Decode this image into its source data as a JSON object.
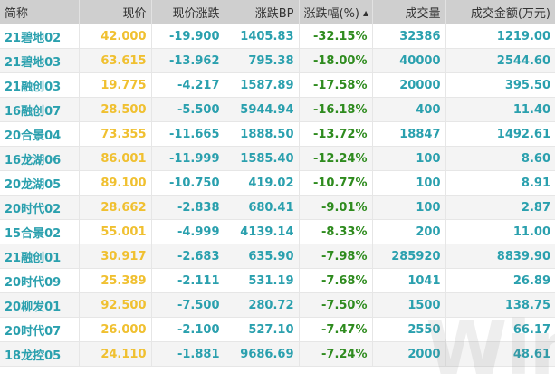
{
  "table": {
    "headers": {
      "name": "简称",
      "price": "现价",
      "change": "现价涨跌",
      "change_bp": "涨跌BP",
      "change_pct": "涨跌幅(%)",
      "volume": "成交量",
      "amount": "成交金额(万元)"
    },
    "sort": {
      "column": "change_pct",
      "direction": "ascending",
      "icon": "sort-up-triangle"
    },
    "rows": [
      {
        "name": "21碧地02",
        "price": "42.000",
        "change": "-19.900",
        "change_bp": "1405.83",
        "change_pct": "-32.15%",
        "volume": "32386",
        "amount": "1219.00"
      },
      {
        "name": "21碧地03",
        "price": "63.615",
        "change": "-13.962",
        "change_bp": "795.38",
        "change_pct": "-18.00%",
        "volume": "40000",
        "amount": "2544.60"
      },
      {
        "name": "21融创03",
        "price": "19.775",
        "change": "-4.217",
        "change_bp": "1587.89",
        "change_pct": "-17.58%",
        "volume": "20000",
        "amount": "395.50"
      },
      {
        "name": "16融创07",
        "price": "28.500",
        "change": "-5.500",
        "change_bp": "5944.94",
        "change_pct": "-16.18%",
        "volume": "400",
        "amount": "11.40"
      },
      {
        "name": "20合景04",
        "price": "73.355",
        "change": "-11.665",
        "change_bp": "1888.50",
        "change_pct": "-13.72%",
        "volume": "18847",
        "amount": "1492.61"
      },
      {
        "name": "16龙湖06",
        "price": "86.001",
        "change": "-11.999",
        "change_bp": "1585.40",
        "change_pct": "-12.24%",
        "volume": "100",
        "amount": "8.60"
      },
      {
        "name": "20龙湖05",
        "price": "89.100",
        "change": "-10.750",
        "change_bp": "419.02",
        "change_pct": "-10.77%",
        "volume": "100",
        "amount": "8.91"
      },
      {
        "name": "20时代02",
        "price": "28.662",
        "change": "-2.838",
        "change_bp": "680.41",
        "change_pct": "-9.01%",
        "volume": "100",
        "amount": "2.87"
      },
      {
        "name": "15合景02",
        "price": "55.001",
        "change": "-4.999",
        "change_bp": "4139.14",
        "change_pct": "-8.33%",
        "volume": "200",
        "amount": "11.00"
      },
      {
        "name": "21融创01",
        "price": "30.917",
        "change": "-2.683",
        "change_bp": "635.90",
        "change_pct": "-7.98%",
        "volume": "285920",
        "amount": "8839.90"
      },
      {
        "name": "20时代09",
        "price": "25.389",
        "change": "-2.111",
        "change_bp": "531.19",
        "change_pct": "-7.68%",
        "volume": "1041",
        "amount": "26.89"
      },
      {
        "name": "20柳发01",
        "price": "92.500",
        "change": "-7.500",
        "change_bp": "280.72",
        "change_pct": "-7.50%",
        "volume": "1500",
        "amount": "138.75"
      },
      {
        "name": "20时代07",
        "price": "26.000",
        "change": "-2.100",
        "change_bp": "527.10",
        "change_pct": "-7.47%",
        "volume": "2550",
        "amount": "66.17"
      },
      {
        "name": "18龙控05",
        "price": "24.110",
        "change": "-1.881",
        "change_bp": "9686.69",
        "change_pct": "-7.24%",
        "volume": "2000",
        "amount": "48.61"
      }
    ]
  },
  "colors": {
    "header_bg": "#cfcfcf",
    "name_text": "#2aa0ae",
    "price_text": "#f0c030",
    "pct_text": "#2e8b1e",
    "value_text": "#2aa0ae",
    "row_alt_bg": "#f4f4f4"
  },
  "watermark": "Win.d"
}
